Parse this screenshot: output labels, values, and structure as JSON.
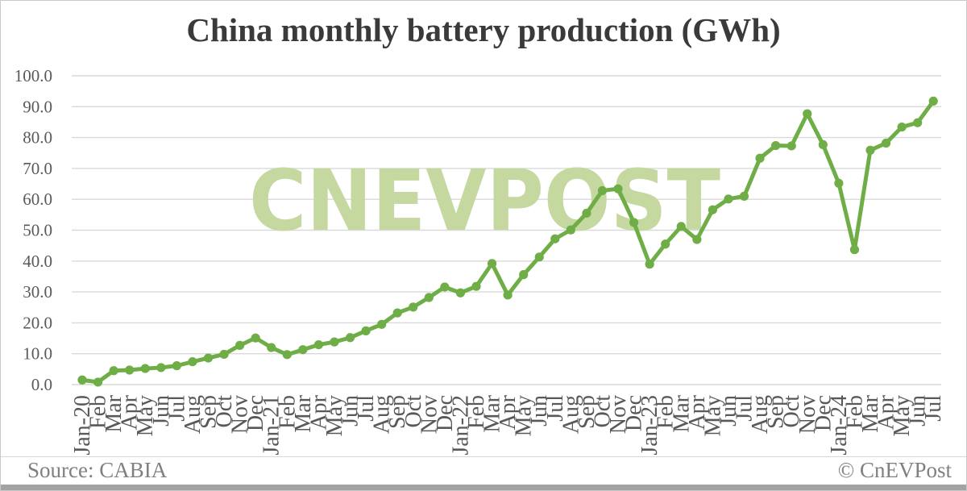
{
  "watermark": "CNEVPOST",
  "footer": {
    "source": "Source: CABIA",
    "credit": "© CnEVPost"
  },
  "colors": {
    "line": "#6fae47",
    "marker": "#6fae47",
    "watermark": "#c5d89f",
    "grid": "#d9d9d9",
    "axis_text": "#595959",
    "title_text": "#3a3a3a",
    "footer_text": "#808080"
  },
  "chart_data": {
    "type": "line",
    "title": "China monthly battery production (GWh)",
    "xlabel": "",
    "ylabel": "",
    "ylim": [
      0,
      100
    ],
    "y_tick_step": 10,
    "y_ticks": [
      "100.0",
      "90.0",
      "80.0",
      "70.0",
      "60.0",
      "50.0",
      "40.0",
      "30.0",
      "20.0",
      "10.0",
      "0.0"
    ],
    "grid": true,
    "legend": false,
    "marker": "circle",
    "x": [
      "Jan-20",
      "Feb",
      "Mar",
      "Apr",
      "May",
      "Jun",
      "Jul",
      "Aug",
      "Sep",
      "Oct",
      "Nov",
      "Dec",
      "Jan-21",
      "Feb",
      "Mar",
      "Apr",
      "May",
      "Jun",
      "Jul",
      "Aug",
      "Sep",
      "Oct",
      "Nov",
      "Dec",
      "Jan-22",
      "Feb",
      "Mar",
      "Apr",
      "May",
      "Jun",
      "Jul",
      "Aug",
      "Sep",
      "Oct",
      "Nov",
      "Dec",
      "Jan-23",
      "Feb",
      "Mar",
      "Apr",
      "May",
      "Jun",
      "Jul",
      "Aug",
      "Sep",
      "Oct",
      "Nov",
      "Dec",
      "Jan-24",
      "Feb",
      "Mar",
      "Apr",
      "May",
      "Jun",
      "Jul"
    ],
    "values": [
      1.5,
      0.8,
      4.5,
      4.7,
      5.2,
      5.5,
      6.1,
      7.4,
      8.6,
      9.8,
      12.7,
      15.1,
      12.0,
      9.7,
      11.3,
      12.9,
      13.8,
      15.2,
      17.4,
      19.5,
      23.2,
      25.1,
      28.2,
      31.6,
      29.7,
      31.8,
      39.2,
      29.0,
      35.6,
      41.3,
      47.2,
      50.1,
      55.5,
      62.8,
      63.4,
      52.5,
      39.0,
      45.5,
      51.2,
      47.0,
      56.6,
      60.1,
      61.0,
      73.3,
      77.4,
      77.3,
      87.7,
      77.7,
      65.2,
      43.7,
      75.9,
      78.2,
      83.4,
      84.8,
      91.8
    ]
  }
}
